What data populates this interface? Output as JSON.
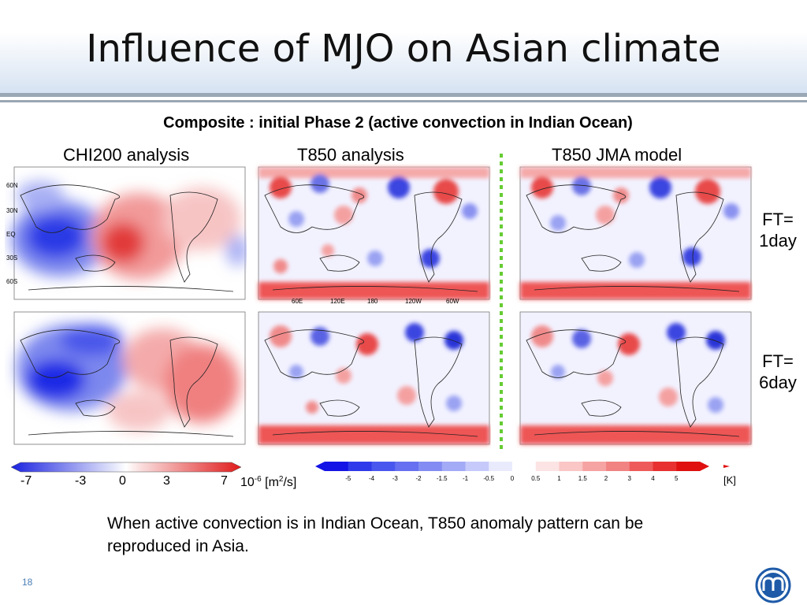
{
  "slide": {
    "title": "Influence of MJO on Asian climate",
    "subtitle": "Composite : initial Phase 2 (active convection in Indian Ocean)",
    "columns": [
      "CHI200 analysis",
      "T850 analysis",
      "T850 JMA model"
    ],
    "rows": [
      "FT=\n1day",
      "FT=\n6day"
    ],
    "note": "When active convection is in Indian Ocean, T850 anomaly pattern can be reproduced in Asia.",
    "page_number": "18"
  },
  "colorbars": {
    "chi200": {
      "ticks": [
        "-7",
        "-3",
        "0",
        "3",
        "7"
      ],
      "unit_base": "10",
      "unit_exp": "-6",
      "unit_rest": " [m",
      "unit_sq": "2",
      "unit_end": "/s]"
    },
    "t850": {
      "ticks": [
        "-5",
        "-4",
        "-3",
        "-2",
        "-1.5",
        "-1",
        "-0.5",
        "0",
        "0.5",
        "1",
        "1.5",
        "2",
        "3",
        "4",
        "5"
      ],
      "unit": "[K]"
    }
  },
  "map_axes": {
    "lat_labels": [
      "60N",
      "30N",
      "EQ",
      "30S",
      "60S"
    ],
    "lon_labels": [
      "60E",
      "120E",
      "180",
      "120W",
      "60W"
    ]
  },
  "colors": {
    "negative": "#2233dd",
    "positive": "#dd2222",
    "separator": "#66cc33",
    "accent": "#4a7fb5"
  }
}
